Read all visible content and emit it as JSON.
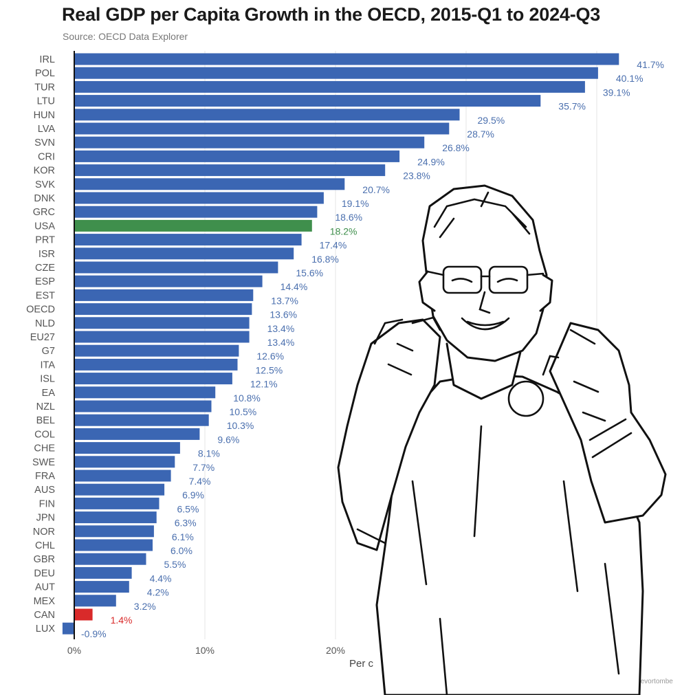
{
  "chart_data": {
    "type": "bar",
    "orientation": "horizontal",
    "title": "Real GDP per Capita Growth in the OECD, 2015-Q1 to 2024-Q3",
    "subtitle": "Source: OECD Data Explorer",
    "xlabel": "Per c",
    "credit": "by @trevortombe",
    "xlim": [
      -1,
      42
    ],
    "x_ticks": [
      0,
      10,
      20
    ],
    "x_tick_labels": [
      "0%",
      "10%",
      "20%"
    ],
    "grid": true,
    "colors": {
      "default": "#3b66b3",
      "highlight_usa": "#3f8f4c",
      "highlight_can": "#d92a2a",
      "label_default": "#4a6fae",
      "label_usa": "#3f8f4c",
      "label_can": "#d92a2a"
    },
    "categories": [
      "IRL",
      "POL",
      "TUR",
      "LTU",
      "HUN",
      "LVA",
      "SVN",
      "CRI",
      "KOR",
      "SVK",
      "DNK",
      "GRC",
      "USA",
      "PRT",
      "ISR",
      "CZE",
      "ESP",
      "EST",
      "OECD",
      "NLD",
      "EU27",
      "G7",
      "ITA",
      "ISL",
      "EA",
      "NZL",
      "BEL",
      "COL",
      "CHE",
      "SWE",
      "FRA",
      "AUS",
      "FIN",
      "JPN",
      "NOR",
      "CHL",
      "GBR",
      "DEU",
      "AUT",
      "MEX",
      "CAN",
      "LUX"
    ],
    "values": [
      41.7,
      40.1,
      39.1,
      35.7,
      29.5,
      28.7,
      26.8,
      24.9,
      23.8,
      20.7,
      19.1,
      18.6,
      18.2,
      17.4,
      16.8,
      15.6,
      14.4,
      13.7,
      13.6,
      13.4,
      13.4,
      12.6,
      12.5,
      12.1,
      10.8,
      10.5,
      10.3,
      9.6,
      8.1,
      7.7,
      7.4,
      6.9,
      6.5,
      6.3,
      6.1,
      6.0,
      5.5,
      4.4,
      4.2,
      3.2,
      1.4,
      -0.9
    ],
    "value_labels": [
      "41.7%",
      "40.1%",
      "39.1%",
      "35.7%",
      "29.5%",
      "28.7%",
      "26.8%",
      "24.9%",
      "23.8%",
      "20.7%",
      "19.1%",
      "18.6%",
      "18.2%",
      "17.4%",
      "16.8%",
      "15.6%",
      "14.4%",
      "13.7%",
      "13.6%",
      "13.4%",
      "13.4%",
      "12.6%",
      "12.5%",
      "12.1%",
      "10.8%",
      "10.5%",
      "10.3%",
      "9.6%",
      "8.1%",
      "7.7%",
      "7.4%",
      "6.9%",
      "6.5%",
      "6.3%",
      "6.1%",
      "6.0%",
      "5.5%",
      "4.4%",
      "4.2%",
      "3.2%",
      "1.4%",
      "-0.9%"
    ],
    "highlight": {
      "USA": "highlight_usa",
      "CAN": "highlight_can"
    }
  }
}
